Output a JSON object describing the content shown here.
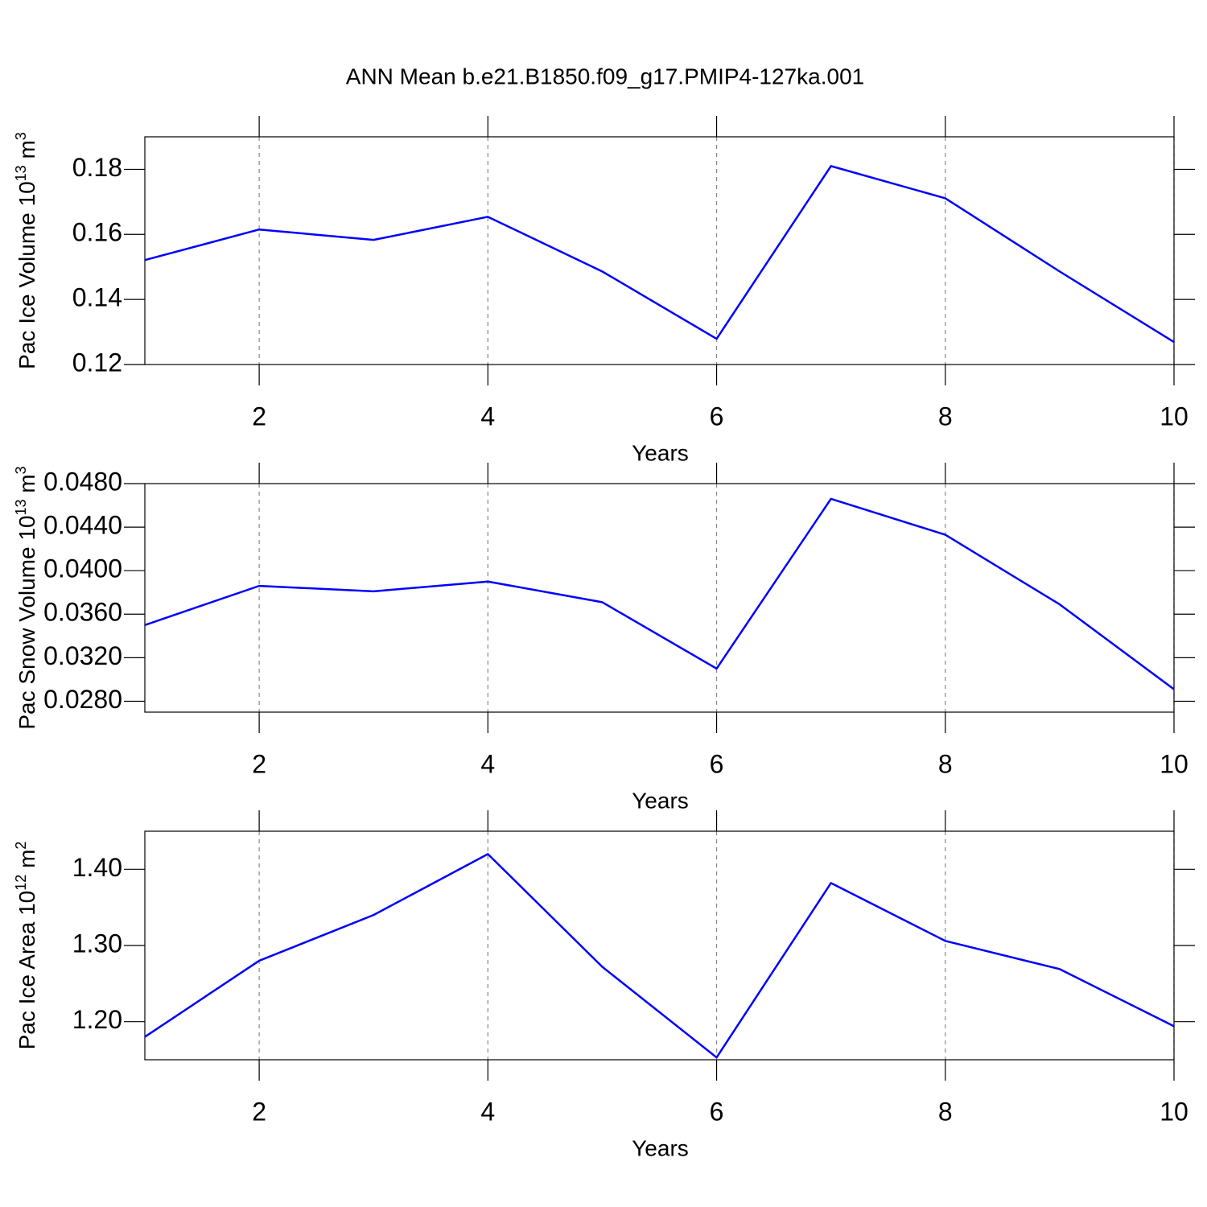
{
  "chart_data": [
    {
      "type": "line",
      "title": "ANN Mean b.e21.B1850.f09_g17.PMIP4-127ka.001",
      "ylabel": [
        "Pac Ice Volume 10",
        "13",
        " m",
        "3"
      ],
      "xlabel": "Years",
      "x": [
        1,
        2,
        3,
        4,
        5,
        6,
        7,
        8,
        9,
        10
      ],
      "values": [
        0.1521,
        0.1615,
        0.1583,
        0.1654,
        0.1486,
        0.1279,
        0.181,
        0.1711,
        0.1486,
        0.1269
      ],
      "color": "#0000ff",
      "xlim": [
        1,
        10
      ],
      "xticks": [
        2,
        4,
        6,
        8,
        10
      ],
      "ylim": [
        0.12,
        0.19
      ],
      "yticks": [
        0.12,
        0.14,
        0.16,
        0.18
      ],
      "grid": true
    },
    {
      "type": "line",
      "ylabel": [
        "Pac Snow Volume 10",
        "13",
        " m",
        "3"
      ],
      "xlabel": "Years",
      "x": [
        1,
        2,
        3,
        4,
        5,
        6,
        7,
        8,
        9,
        10
      ],
      "values": [
        0.035,
        0.0386,
        0.0381,
        0.039,
        0.0371,
        0.031,
        0.0466,
        0.0433,
        0.0369,
        0.0291
      ],
      "color": "#0000ff",
      "xlim": [
        1,
        10
      ],
      "xticks": [
        2,
        4,
        6,
        8,
        10
      ],
      "ylim": [
        0.027,
        0.048
      ],
      "yticks": [
        {
          "value": 0.028,
          "label": "0.0280"
        },
        {
          "value": 0.032,
          "label": "0.0320"
        },
        {
          "value": 0.036,
          "label": "0.0360"
        },
        {
          "value": 0.04,
          "label": "0.0400"
        },
        {
          "value": 0.044,
          "label": "0.0440"
        },
        {
          "value": 0.048,
          "label": "0.0480"
        }
      ],
      "grid": true
    },
    {
      "type": "line",
      "ylabel": [
        "Pac Ice Area 10",
        "12",
        " m",
        "2"
      ],
      "xlabel": "Years",
      "x": [
        1,
        2,
        3,
        4,
        5,
        6,
        7,
        8,
        9,
        10
      ],
      "values": [
        1.18,
        1.28,
        1.34,
        1.42,
        1.272,
        1.153,
        1.382,
        1.306,
        1.269,
        1.194
      ],
      "color": "#0000ff",
      "xlim": [
        1,
        10
      ],
      "xticks": [
        2,
        4,
        6,
        8,
        10
      ],
      "ylim": [
        1.15,
        1.45
      ],
      "yticks": [
        {
          "value": 1.2,
          "label": "1.20"
        },
        {
          "value": 1.3,
          "label": "1.30"
        },
        {
          "value": 1.4,
          "label": "1.40"
        }
      ],
      "grid": true
    }
  ]
}
